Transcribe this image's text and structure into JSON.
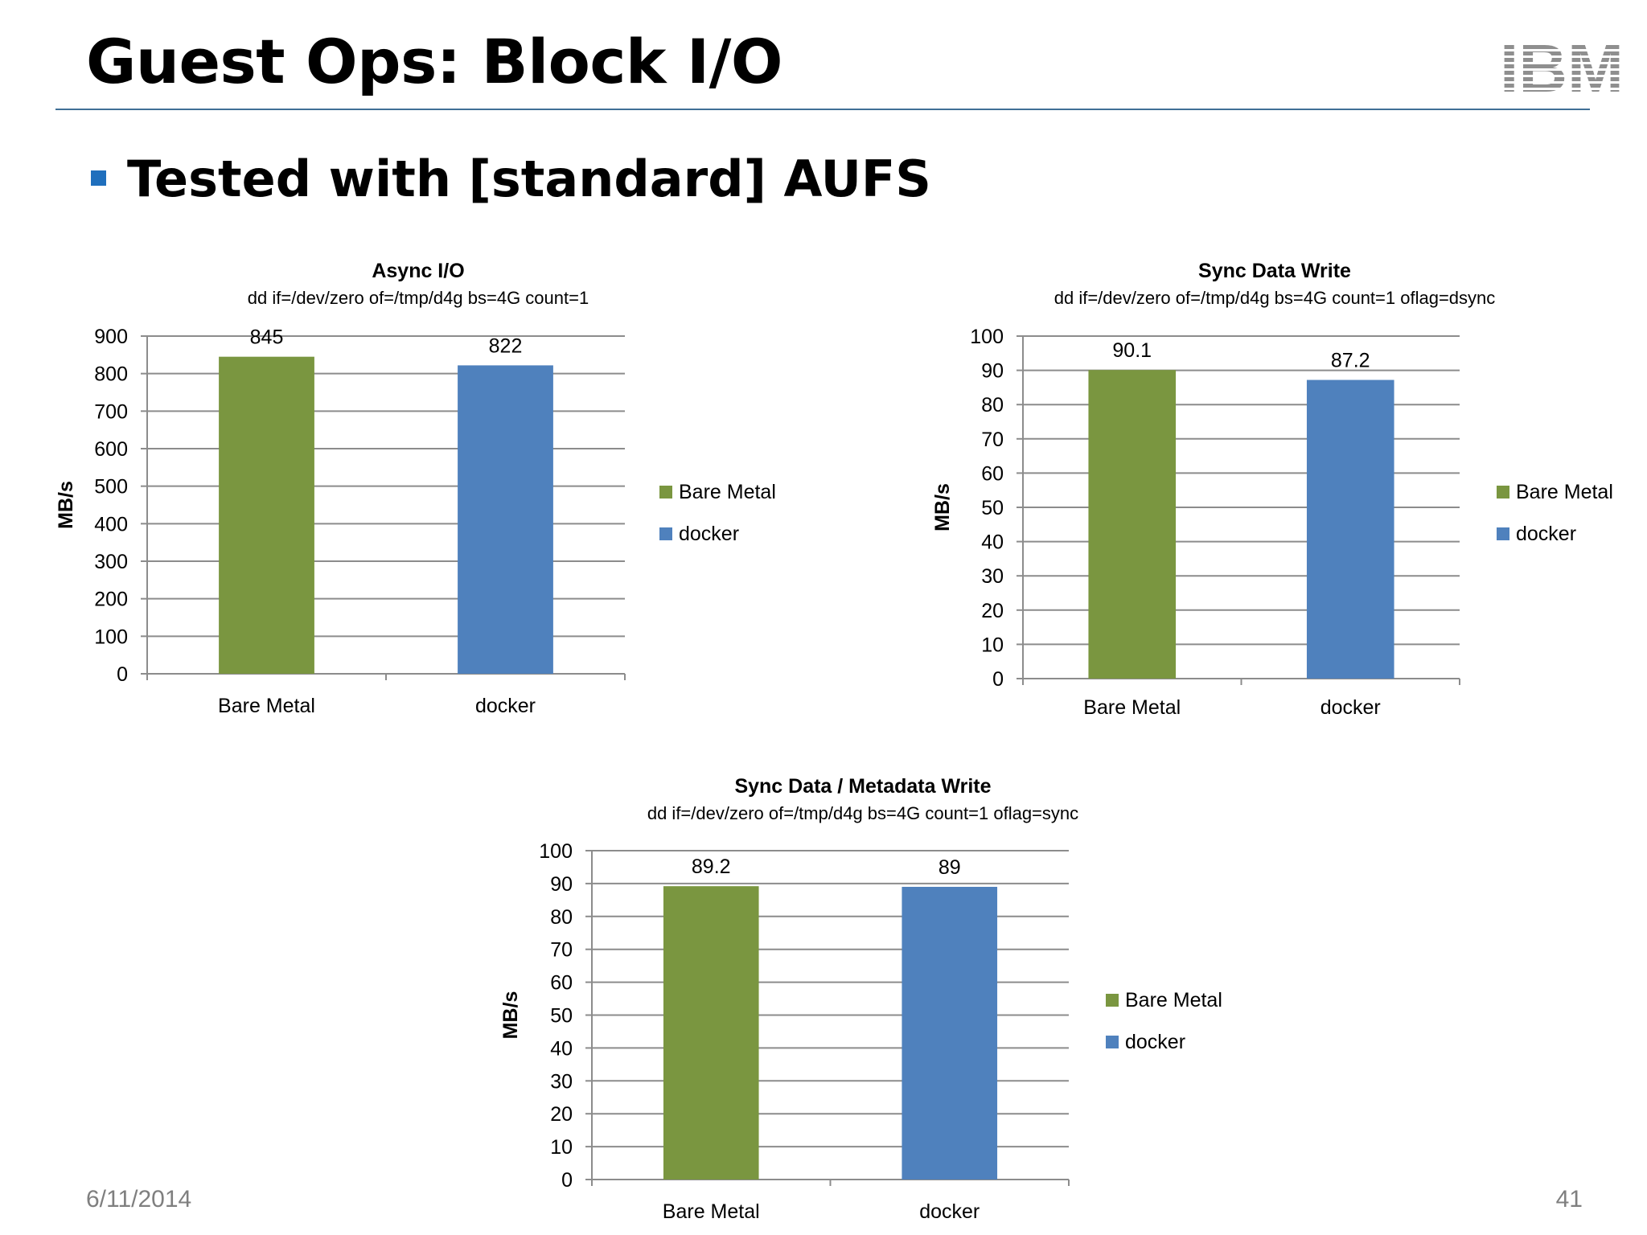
{
  "slide": {
    "title": "Guest Ops: Block I/O",
    "logo": "IBM",
    "bullet": "Tested with [standard] AUFS",
    "footer_date": "6/11/2014",
    "page_number": "41"
  },
  "colors": {
    "bare_metal": "#7a9640",
    "docker": "#4f81bd",
    "title_rule": "#3f6f96",
    "bullet": "#1f6fbd",
    "gridline": "#8c8c8c"
  },
  "chart_data": [
    {
      "type": "bar",
      "title": "Async I/O",
      "subtitle": "dd if=/dev/zero of=/tmp/d4g bs=4G count=1",
      "ylabel": "MB/s",
      "xlabel": "",
      "categories": [
        "Bare Metal",
        "docker"
      ],
      "values": [
        845,
        822
      ],
      "data_labels": [
        "845",
        "822"
      ],
      "ylim": [
        0,
        900
      ],
      "yticks": [
        0,
        100,
        200,
        300,
        400,
        500,
        600,
        700,
        800,
        900
      ],
      "legend": [
        "Bare Metal",
        "docker"
      ],
      "legend_position": "right",
      "grid": true
    },
    {
      "type": "bar",
      "title": "Sync Data Write",
      "subtitle": "dd if=/dev/zero of=/tmp/d4g bs=4G count=1 oflag=dsync",
      "ylabel": "MB/s",
      "xlabel": "",
      "categories": [
        "Bare Metal",
        "docker"
      ],
      "values": [
        90.1,
        87.2
      ],
      "data_labels": [
        "90.1",
        "87.2"
      ],
      "ylim": [
        0,
        100
      ],
      "yticks": [
        0,
        10,
        20,
        30,
        40,
        50,
        60,
        70,
        80,
        90,
        100
      ],
      "legend": [
        "Bare Metal",
        "docker"
      ],
      "legend_position": "right",
      "grid": true
    },
    {
      "type": "bar",
      "title": "Sync Data / Metadata Write",
      "subtitle": "dd if=/dev/zero of=/tmp/d4g bs=4G count=1 oflag=sync",
      "ylabel": "MB/s",
      "xlabel": "",
      "categories": [
        "Bare Metal",
        "docker"
      ],
      "values": [
        89.2,
        89
      ],
      "data_labels": [
        "89.2",
        "89"
      ],
      "ylim": [
        0,
        100
      ],
      "yticks": [
        0,
        10,
        20,
        30,
        40,
        50,
        60,
        70,
        80,
        90,
        100
      ],
      "legend": [
        "Bare Metal",
        "docker"
      ],
      "legend_position": "right",
      "grid": true
    }
  ]
}
